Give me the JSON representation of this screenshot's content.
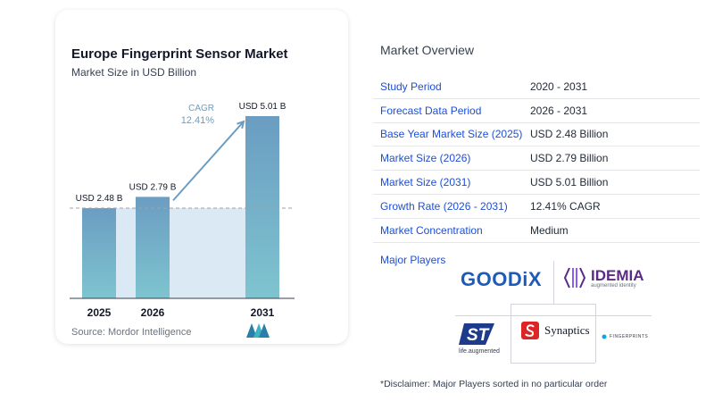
{
  "chart_data": {
    "type": "bar",
    "title": "Europe Fingerprint Sensor Market",
    "subtitle": "Market Size in USD Billion",
    "categories": [
      "2025",
      "2026",
      "2031"
    ],
    "values": [
      2.48,
      2.79,
      5.01
    ],
    "value_labels": [
      "USD 2.48 B",
      "USD 2.79 B",
      "USD 5.01 B"
    ],
    "ylim": [
      0,
      5.01
    ],
    "annotation": {
      "label": "CAGR",
      "value": "12.41%"
    },
    "colors": {
      "bar_top": "#6b9dc2",
      "bar_bottom": "#7ec4cf",
      "shade": "#dbe9f4",
      "arrow": "#6b9dc2",
      "cagr": "#6b9dc2"
    }
  },
  "source": "Source:  Mordor Intelligence",
  "overview": {
    "title": "Market Overview",
    "rows": [
      {
        "label": "Study Period",
        "value": "2020 - 2031"
      },
      {
        "label": "Forecast Data Period",
        "value": "2026 - 2031"
      },
      {
        "label": "Base Year Market Size (2025)",
        "value": "USD 2.48 Billion"
      },
      {
        "label": "Market Size (2026)",
        "value": "USD 2.79 Billion"
      },
      {
        "label": "Market Size (2031)",
        "value": "USD 5.01 Billion"
      },
      {
        "label": "Growth Rate (2026 - 2031)",
        "value": "12.41% CAGR"
      },
      {
        "label": "Market Concentration",
        "value": "Medium"
      }
    ]
  },
  "players": {
    "title": "Major Players",
    "logos": {
      "goodix": "GOODiX",
      "idemia": "IDEMIA",
      "idemia_tag": "augmented identity",
      "st_tag": "life.augmented",
      "synaptics": "Synaptics",
      "fingerprints": "FINGERPRINTS"
    }
  },
  "disclaimer": "*Disclaimer: Major Players sorted in no particular order"
}
